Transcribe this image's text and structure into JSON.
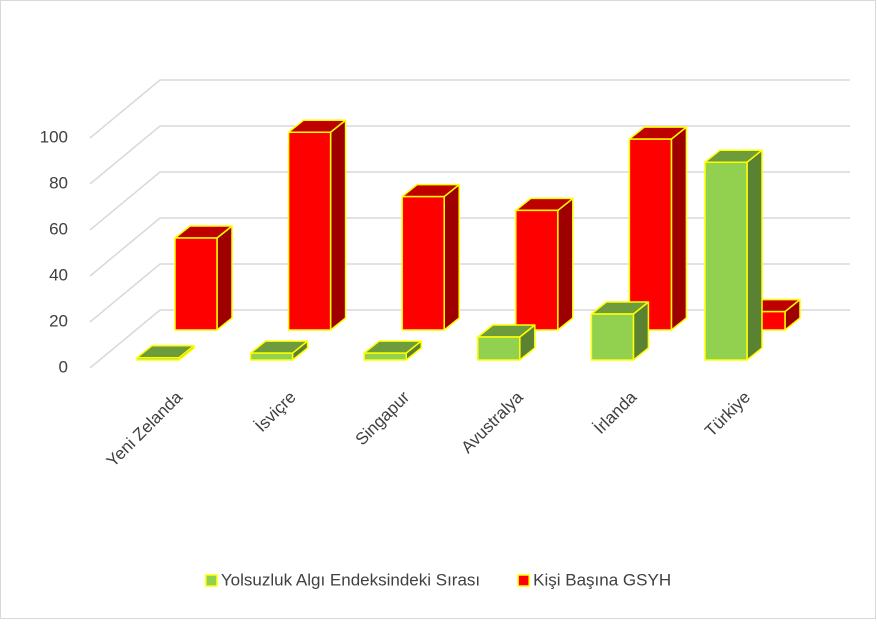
{
  "chart_data": {
    "type": "bar3d",
    "categories": [
      "Yeni Zelanda",
      "İsviçre",
      "Singapur",
      "Avustralya",
      "İrlanda",
      "Türkiye"
    ],
    "series": [
      {
        "name": "Yolsuzluk Algı Endeksindeki Sırası",
        "color": "#92d050",
        "values": [
          1,
          3,
          3,
          10,
          20,
          86
        ]
      },
      {
        "name": "Kişi Başına GSYH",
        "color": "#ff0000",
        "values": [
          40,
          86,
          58,
          52,
          83,
          8
        ]
      }
    ],
    "ylim": [
      0,
      100
    ],
    "yticks": [
      0,
      20,
      40,
      60,
      80,
      100
    ],
    "grid": true,
    "legend": "bottom"
  }
}
